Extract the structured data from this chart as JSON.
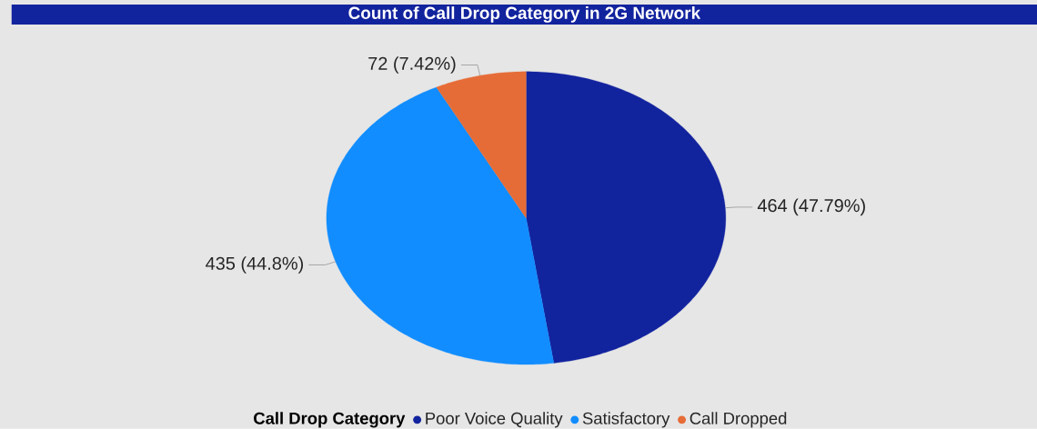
{
  "chart_data": {
    "type": "pie",
    "title": "Count of Call Drop Category in 2G Network",
    "legend_title": "Call Drop Category",
    "categories": [
      "Poor Voice Quality",
      "Satisfactory",
      "Call Dropped"
    ],
    "values": [
      464,
      435,
      72
    ],
    "colors": [
      "#12239e",
      "#118dff",
      "#e66c37"
    ],
    "value_labels": [
      "464 (47.79%)",
      "435 (44.8%)",
      "72 (7.42%)"
    ],
    "legend": "bottom"
  }
}
